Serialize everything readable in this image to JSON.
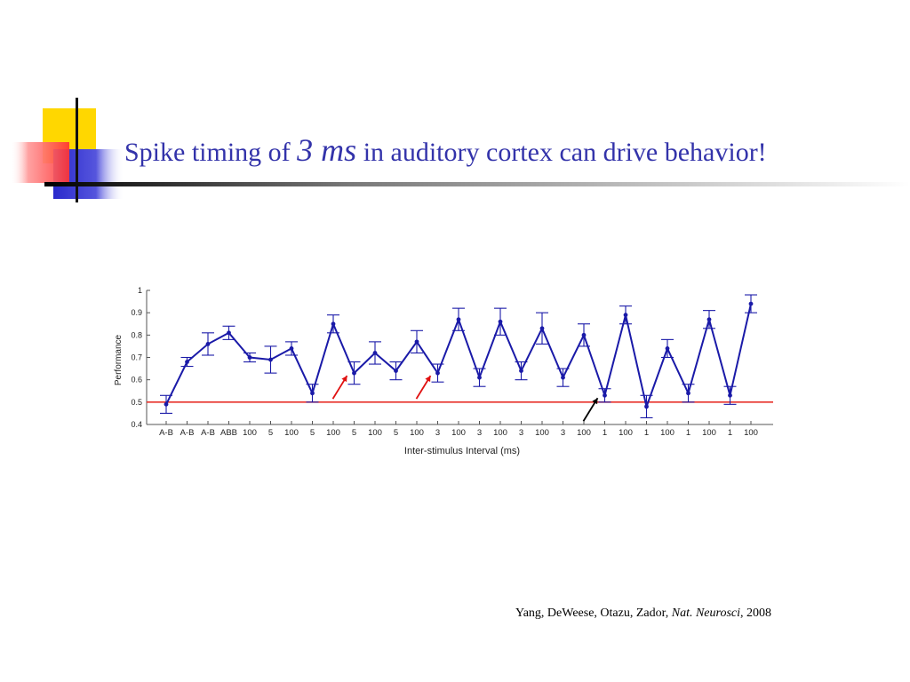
{
  "slide": {
    "title_prefix": "Spike timing of ",
    "title_emphasis": "3 ms",
    "title_suffix": " in auditory cortex can drive behavior!",
    "citation_authors": "Yang, DeWeese, Otazu, Zador, ",
    "citation_journal": "Nat. Neurosci",
    "citation_year": ", 2008",
    "accent_colors": {
      "yellow": "#ffd700",
      "red": "#ff3b3b",
      "blue": "#2a2acc",
      "title": "#3333aa"
    }
  },
  "chart_data": {
    "type": "line",
    "xlabel": "Inter-stimulus Interval (ms)",
    "ylabel": "Performance",
    "ylim": [
      0.4,
      1
    ],
    "yticks": [
      "0.4",
      "0.5",
      "0.6",
      "0.7",
      "0.8",
      "0.9",
      "1"
    ],
    "categories": [
      "A-B",
      "A-B",
      "A-B",
      "ABB",
      "100",
      "5",
      "100",
      "5",
      "100",
      "5",
      "100",
      "5",
      "100",
      "3",
      "100",
      "3",
      "100",
      "3",
      "100",
      "3",
      "100",
      "1",
      "100",
      "1",
      "100",
      "1",
      "100",
      "1",
      "100"
    ],
    "series": [
      {
        "color": "#1a1aa8",
        "values": [
          0.49,
          0.68,
          0.76,
          0.81,
          0.7,
          0.69,
          0.74,
          0.54,
          0.85,
          0.63,
          0.72,
          0.64,
          0.77,
          0.63,
          0.87,
          0.61,
          0.86,
          0.64,
          0.83,
          0.61,
          0.8,
          0.53,
          0.89,
          0.48,
          0.74,
          0.54,
          0.87,
          0.53,
          0.94
        ],
        "errors": [
          0.04,
          0.02,
          0.05,
          0.03,
          0.02,
          0.06,
          0.03,
          0.04,
          0.04,
          0.05,
          0.05,
          0.04,
          0.05,
          0.04,
          0.05,
          0.04,
          0.06,
          0.04,
          0.07,
          0.04,
          0.05,
          0.03,
          0.04,
          0.05,
          0.04,
          0.04,
          0.04,
          0.04,
          0.04
        ]
      }
    ],
    "reference_line": {
      "y": 0.5,
      "color": "#e8322b"
    },
    "arrows": [
      {
        "category_index": 9,
        "color": "#e01010"
      },
      {
        "category_index": 13,
        "color": "#e01010"
      },
      {
        "category_index": 21,
        "color": "#000000"
      }
    ]
  }
}
